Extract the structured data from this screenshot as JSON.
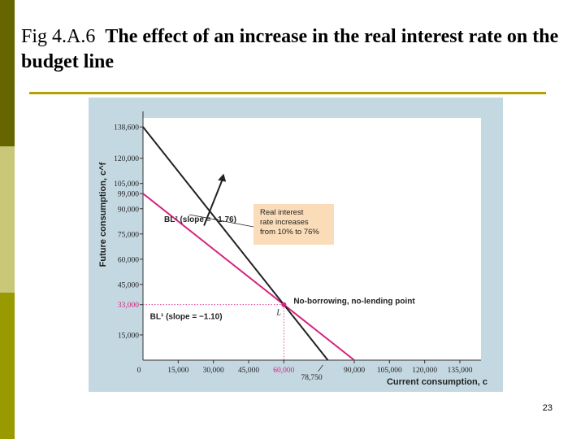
{
  "slide": {
    "title_fig": "Fig 4.A.6",
    "title_text": "The effect of an increase in the real interest rate on the budget line",
    "page_number": "23"
  },
  "colors": {
    "sidebar_top": "#666600",
    "sidebar_mid": "#c8c878",
    "sidebar_bottom": "#999900",
    "rule": "#b3a100",
    "chart_bg": "#c4d8e2",
    "plot_bg": "#ffffff",
    "bl1": "#d4227e",
    "bl2": "#222222",
    "annotation_box": "#fbdcb8"
  },
  "chart_data": {
    "type": "line",
    "xlabel": "Current consumption, c",
    "ylabel": "Future consumption, c^f",
    "xlim": [
      0,
      144000
    ],
    "ylim": [
      0,
      144000
    ],
    "x_ticks": [
      "0",
      "15,000",
      "30,000",
      "45,000",
      "60,000",
      "90,000",
      "105,000",
      "120,000",
      "135,000"
    ],
    "x_tick_values": [
      0,
      15000,
      30000,
      45000,
      60000,
      90000,
      105000,
      120000,
      135000
    ],
    "y_ticks": [
      "15,000",
      "33,000",
      "45,000",
      "60,000",
      "75,000",
      "90,000",
      "99,000",
      "105,000",
      "120,000",
      "138,600"
    ],
    "y_tick_values": [
      15000,
      33000,
      45000,
      60000,
      75000,
      90000,
      99000,
      105000,
      120000,
      138600
    ],
    "extra_x_label": "78,750",
    "extra_x_value": 78750,
    "series": [
      {
        "name": "BL¹ (slope = −1.10)",
        "x": [
          0,
          90000
        ],
        "y": [
          99000,
          0
        ]
      },
      {
        "name": "BL² (slope = −1.76)",
        "x": [
          0,
          78750
        ],
        "y": [
          138600,
          0
        ]
      }
    ],
    "point": {
      "label": "L",
      "x": 60000,
      "y": 33000,
      "annotation": "No-borrowing, no-lending point"
    },
    "annotation_box": [
      "Real interest",
      "rate increases",
      "from 10% to 76%"
    ],
    "highlight_x_label": "60,000",
    "highlight_y_label": "33,000"
  }
}
